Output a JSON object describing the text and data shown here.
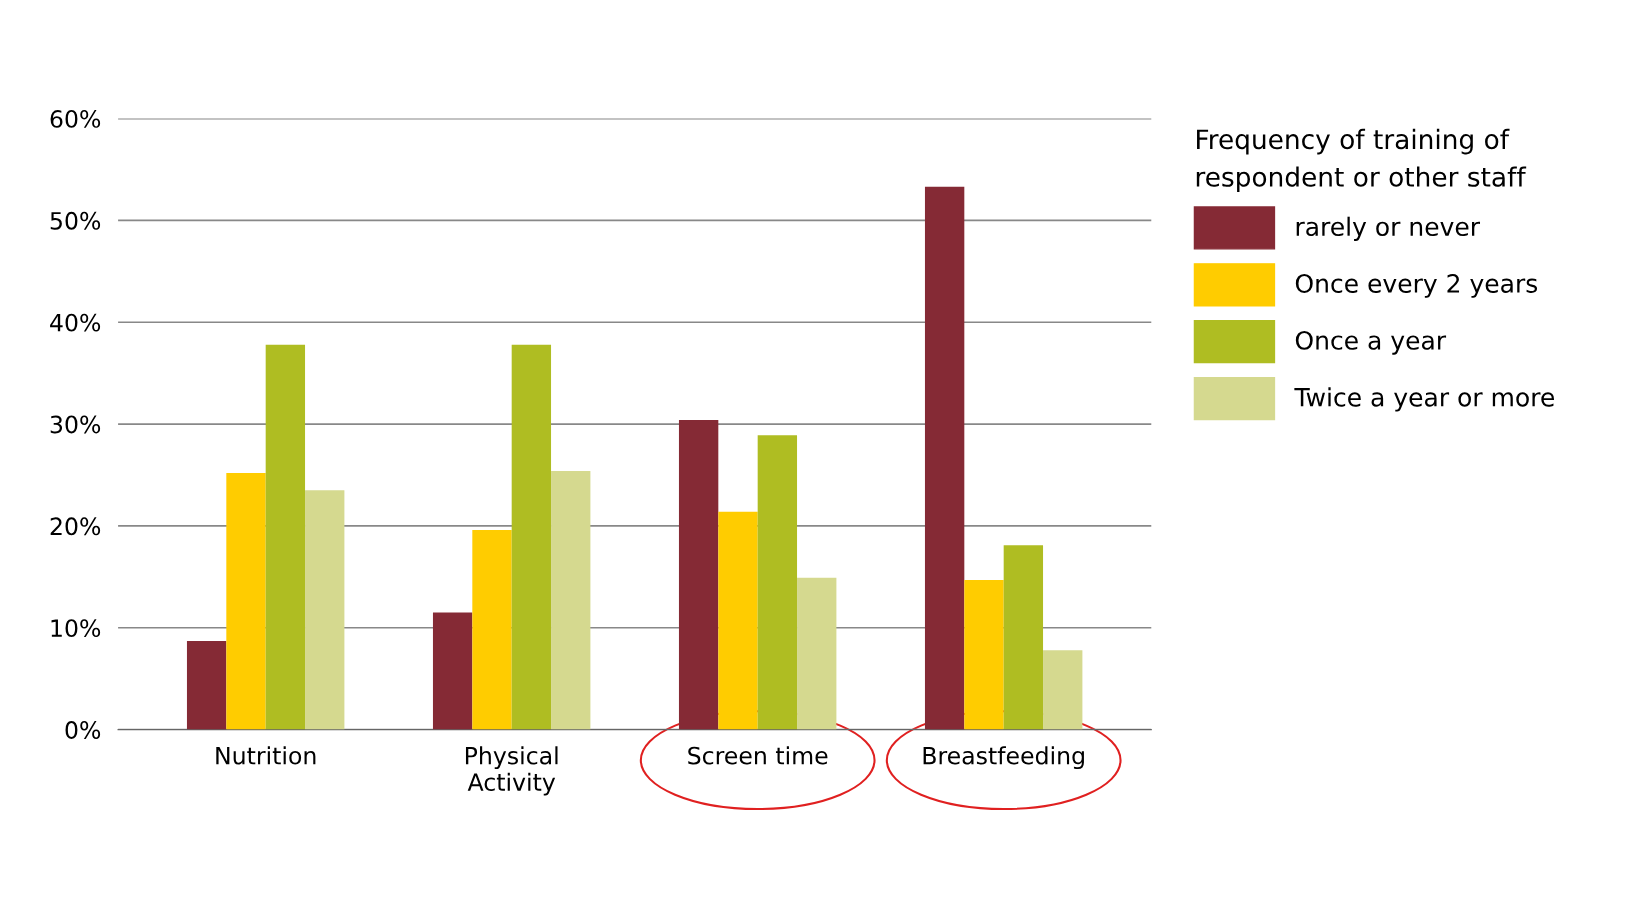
{
  "chart_data": {
    "type": "bar",
    "legend_title": "Frequency of training of\nrespondent or other staff",
    "categories": [
      "Nutrition",
      "Physical\nActivity",
      "Screen time",
      "Breastfeeding"
    ],
    "series": [
      {
        "name": "rarely or never",
        "color": "#852a35",
        "values": [
          8.7,
          11.5,
          30.4,
          53.3
        ]
      },
      {
        "name": "Once every 2 years",
        "color": "#ffcc00",
        "values": [
          25.2,
          19.6,
          21.4,
          14.7
        ]
      },
      {
        "name": "Once a year",
        "color": "#afbd22",
        "values": [
          37.8,
          37.8,
          28.9,
          18.1
        ]
      },
      {
        "name": "Twice a year or more",
        "color": "#d5d98f",
        "values": [
          23.5,
          25.4,
          14.9,
          7.8
        ]
      }
    ],
    "ylim": [
      0,
      60
    ],
    "yticks": [
      {
        "value": 0,
        "label": "0%"
      },
      {
        "value": 10,
        "label": "10%"
      },
      {
        "value": 20,
        "label": "20%"
      },
      {
        "value": 30,
        "label": "30%"
      },
      {
        "value": 40,
        "label": "40%"
      },
      {
        "value": 50,
        "label": "50%"
      },
      {
        "value": 60,
        "label": "60%"
      }
    ],
    "grid": "y",
    "legend": "right"
  }
}
